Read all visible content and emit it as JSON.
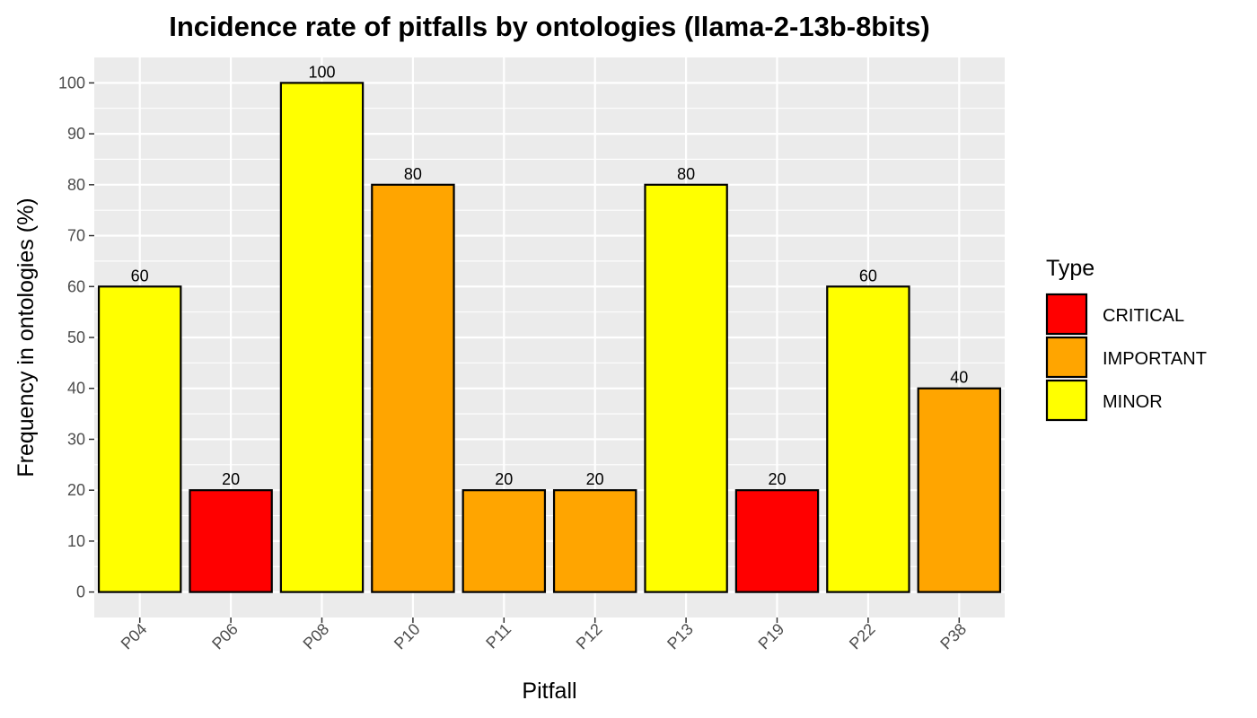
{
  "chart_data": {
    "type": "bar",
    "title": "Incidence rate of pitfalls by ontologies (llama-2-13b-8bits)",
    "xlabel": "Pitfall",
    "ylabel": "Frequency in ontologies (%)",
    "categories": [
      "P04",
      "P06",
      "P08",
      "P10",
      "P11",
      "P12",
      "P13",
      "P19",
      "P22",
      "P38"
    ],
    "values": [
      60,
      20,
      100,
      80,
      20,
      20,
      80,
      20,
      60,
      40
    ],
    "types": [
      "MINOR",
      "CRITICAL",
      "MINOR",
      "IMPORTANT",
      "IMPORTANT",
      "IMPORTANT",
      "MINOR",
      "CRITICAL",
      "MINOR",
      "IMPORTANT"
    ],
    "data_labels": [
      "60",
      "20",
      "100",
      "80",
      "20",
      "20",
      "80",
      "20",
      "60",
      "40"
    ],
    "yticks": [
      0,
      10,
      20,
      30,
      40,
      50,
      60,
      70,
      80,
      90,
      100
    ],
    "ylim": [
      -5,
      105
    ],
    "grid": true,
    "legend": {
      "title": "Type",
      "placement": "right",
      "entries": [
        {
          "label": "CRITICAL",
          "color": "#ff0000"
        },
        {
          "label": "IMPORTANT",
          "color": "#ffa500"
        },
        {
          "label": "MINOR",
          "color": "#ffff00"
        }
      ]
    },
    "colors": {
      "panel_background": "#ebebeb",
      "grid": "#ffffff",
      "bar_outline": "#000000",
      "tick_text": "#4d4d4d"
    }
  }
}
